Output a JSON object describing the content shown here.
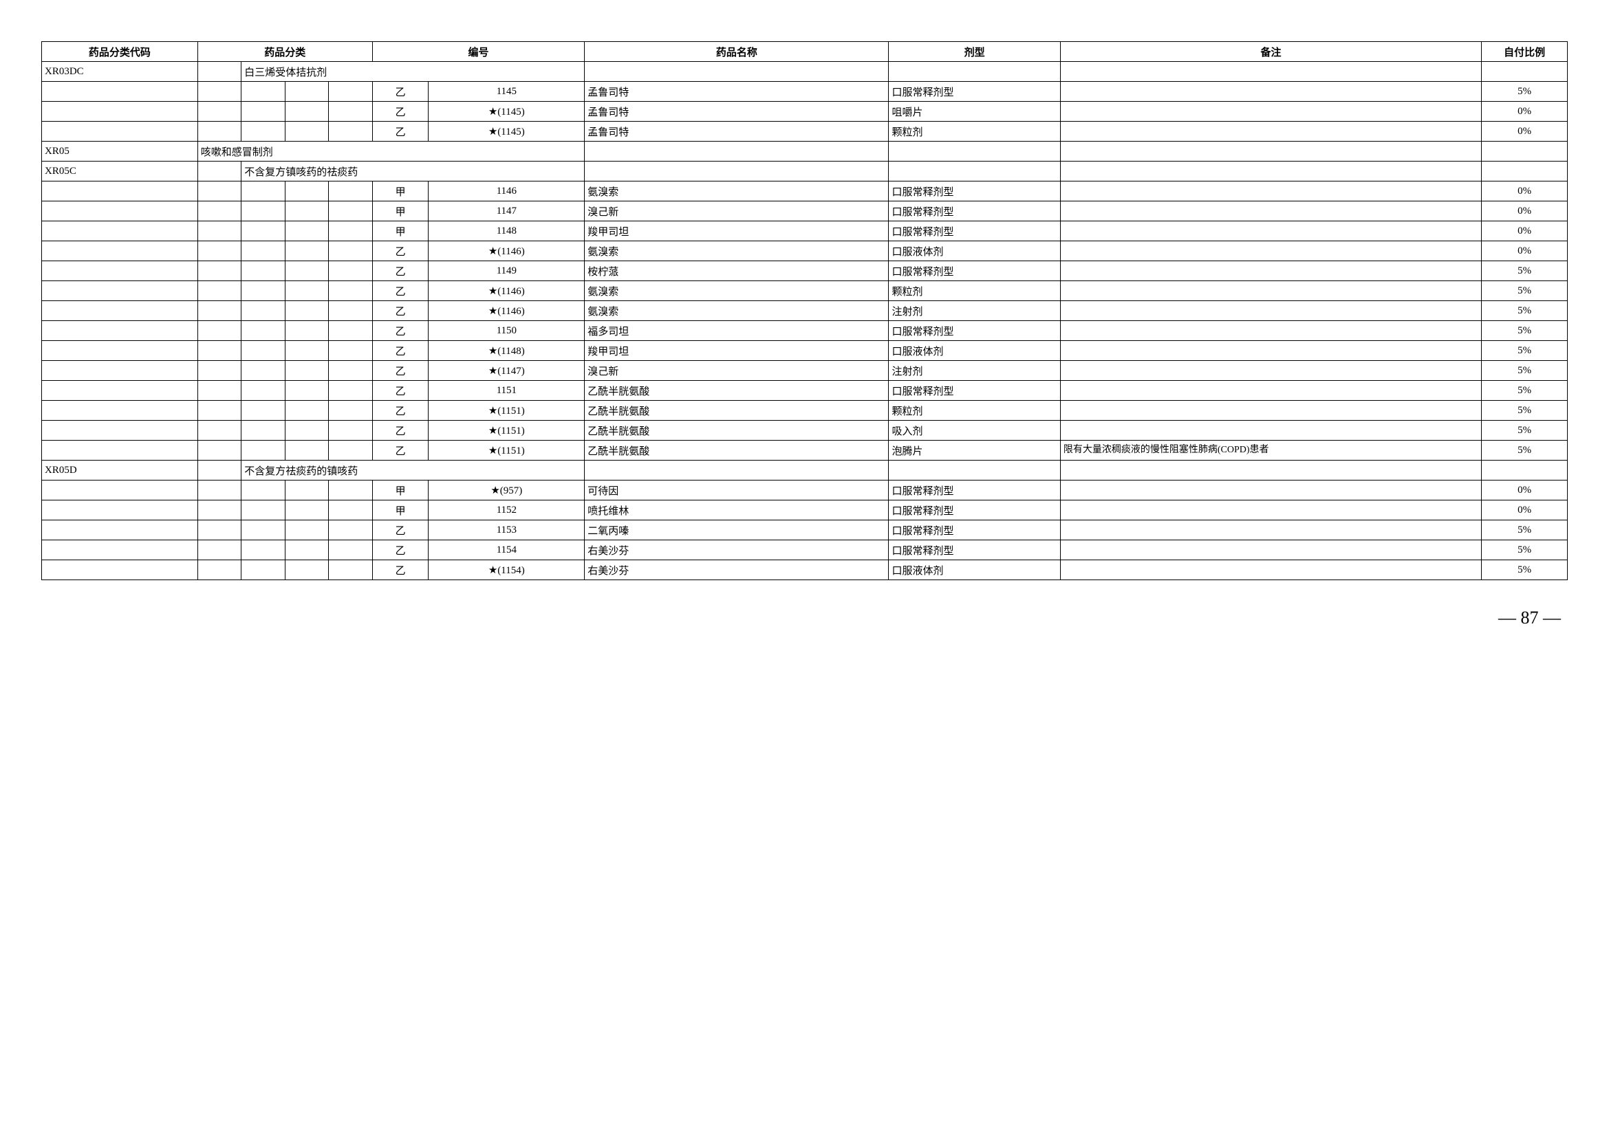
{
  "headers": {
    "code": "药品分类代码",
    "category": "药品分类",
    "number": "编号",
    "name": "药品名称",
    "form": "剂型",
    "note": "备注",
    "ratio": "自付比例"
  },
  "pageNumber": "— 87 —",
  "rows": [
    {
      "code": "XR03DC",
      "catSpan": 3,
      "catStart": 2,
      "catText": "白三烯受体拮抗剂",
      "grade": "",
      "num": "",
      "name": "",
      "form": "",
      "note": "",
      "ratio": ""
    },
    {
      "code": "",
      "grade": "乙",
      "num": "1145",
      "name": "孟鲁司特",
      "form": "口服常释剂型",
      "note": "",
      "ratio": "5%"
    },
    {
      "code": "",
      "grade": "乙",
      "num": "★(1145)",
      "name": "孟鲁司特",
      "form": "咀嚼片",
      "note": "",
      "ratio": "0%"
    },
    {
      "code": "",
      "grade": "乙",
      "num": "★(1145)",
      "name": "孟鲁司特",
      "form": "颗粒剂",
      "note": "",
      "ratio": "0%"
    },
    {
      "code": "XR05",
      "catSpan": 4,
      "catStart": 1,
      "catText": "咳嗽和感冒制剂",
      "grade": "",
      "num": "",
      "name": "",
      "form": "",
      "note": "",
      "ratio": ""
    },
    {
      "code": "XR05C",
      "catSpan": 3,
      "catStart": 2,
      "catText": "不含复方镇咳药的祛痰药",
      "grade": "",
      "num": "",
      "name": "",
      "form": "",
      "note": "",
      "ratio": ""
    },
    {
      "code": "",
      "grade": "甲",
      "num": "1146",
      "name": "氨溴索",
      "form": "口服常释剂型",
      "note": "",
      "ratio": "0%"
    },
    {
      "code": "",
      "grade": "甲",
      "num": "1147",
      "name": "溴己新",
      "form": "口服常释剂型",
      "note": "",
      "ratio": "0%"
    },
    {
      "code": "",
      "grade": "甲",
      "num": "1148",
      "name": "羧甲司坦",
      "form": "口服常释剂型",
      "note": "",
      "ratio": "0%"
    },
    {
      "code": "",
      "grade": "乙",
      "num": "★(1146)",
      "name": "氨溴索",
      "form": "口服液体剂",
      "note": "",
      "ratio": "0%"
    },
    {
      "code": "",
      "grade": "乙",
      "num": "1149",
      "name": "桉柠蒎",
      "form": "口服常释剂型",
      "note": "",
      "ratio": "5%"
    },
    {
      "code": "",
      "grade": "乙",
      "num": "★(1146)",
      "name": "氨溴索",
      "form": "颗粒剂",
      "note": "",
      "ratio": "5%"
    },
    {
      "code": "",
      "grade": "乙",
      "num": "★(1146)",
      "name": "氨溴索",
      "form": "注射剂",
      "note": "",
      "ratio": "5%"
    },
    {
      "code": "",
      "grade": "乙",
      "num": "1150",
      "name": "福多司坦",
      "form": "口服常释剂型",
      "note": "",
      "ratio": "5%"
    },
    {
      "code": "",
      "grade": "乙",
      "num": "★(1148)",
      "name": "羧甲司坦",
      "form": "口服液体剂",
      "note": "",
      "ratio": "5%"
    },
    {
      "code": "",
      "grade": "乙",
      "num": "★(1147)",
      "name": "溴己新",
      "form": "注射剂",
      "note": "",
      "ratio": "5%"
    },
    {
      "code": "",
      "grade": "乙",
      "num": "1151",
      "name": "乙酰半胱氨酸",
      "form": "口服常释剂型",
      "note": "",
      "ratio": "5%"
    },
    {
      "code": "",
      "grade": "乙",
      "num": "★(1151)",
      "name": "乙酰半胱氨酸",
      "form": "颗粒剂",
      "note": "",
      "ratio": "5%"
    },
    {
      "code": "",
      "grade": "乙",
      "num": "★(1151)",
      "name": "乙酰半胱氨酸",
      "form": "吸入剂",
      "note": "",
      "ratio": "5%"
    },
    {
      "code": "",
      "grade": "乙",
      "num": "★(1151)",
      "name": "乙酰半胱氨酸",
      "form": "泡腾片",
      "note": "限有大量浓稠痰液的慢性阻塞性肺病(COPD)患者",
      "ratio": "5%"
    },
    {
      "code": "XR05D",
      "catSpan": 3,
      "catStart": 2,
      "catText": "不含复方祛痰药的镇咳药",
      "grade": "",
      "num": "",
      "name": "",
      "form": "",
      "note": "",
      "ratio": ""
    },
    {
      "code": "",
      "grade": "甲",
      "num": "★(957)",
      "name": "可待因",
      "form": "口服常释剂型",
      "note": "",
      "ratio": "0%"
    },
    {
      "code": "",
      "grade": "甲",
      "num": "1152",
      "name": "喷托维林",
      "form": "口服常释剂型",
      "note": "",
      "ratio": "0%"
    },
    {
      "code": "",
      "grade": "乙",
      "num": "1153",
      "name": "二氧丙嗪",
      "form": "口服常释剂型",
      "note": "",
      "ratio": "5%"
    },
    {
      "code": "",
      "grade": "乙",
      "num": "1154",
      "name": "右美沙芬",
      "form": "口服常释剂型",
      "note": "",
      "ratio": "5%"
    },
    {
      "code": "",
      "grade": "乙",
      "num": "★(1154)",
      "name": "右美沙芬",
      "form": "口服液体剂",
      "note": "",
      "ratio": "5%"
    }
  ]
}
